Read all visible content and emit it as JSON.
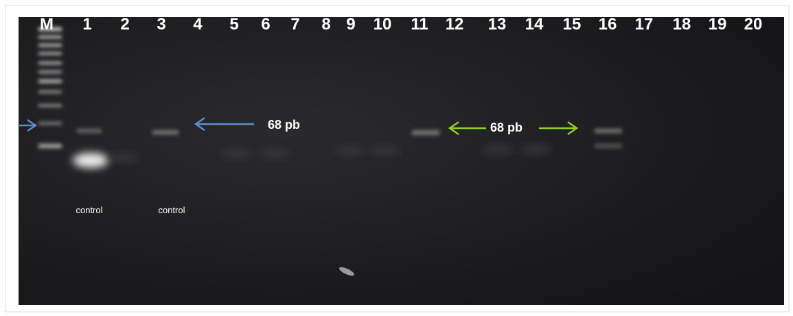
{
  "lanes": [
    "M",
    "1",
    "2",
    "3",
    "4",
    "5",
    "6",
    "7",
    "8",
    "9",
    "10",
    "11",
    "12",
    "13",
    "14",
    "15",
    "16",
    "17",
    "18",
    "19",
    "20"
  ],
  "annotations": {
    "left_band_size": "68 pb",
    "right_band_size": "68 pb"
  },
  "controls": [
    "control",
    "control"
  ]
}
